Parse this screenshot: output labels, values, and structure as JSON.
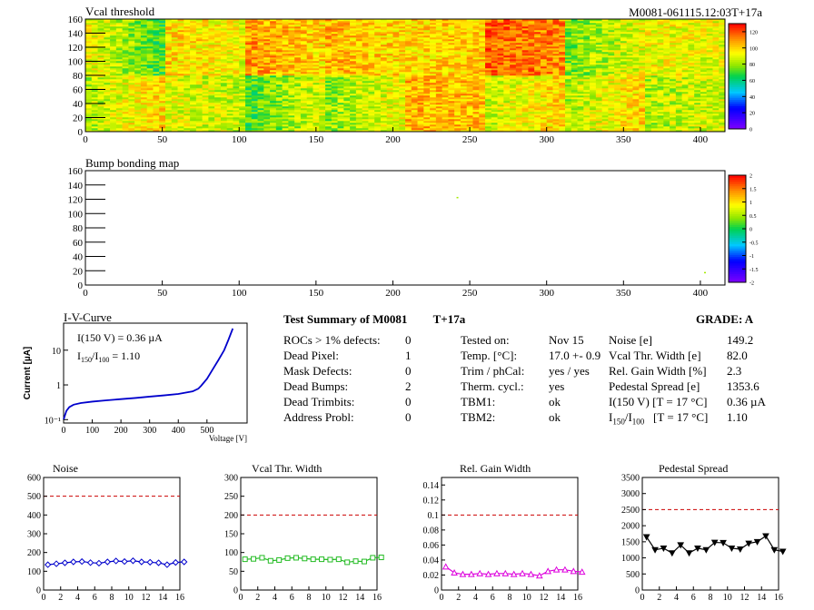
{
  "top_label": "M0081-061115.12:03T+17a",
  "chart_data": [
    {
      "type": "heatmap",
      "title": "Vcal threshold",
      "xlim": [
        0,
        416
      ],
      "ylim": [
        0,
        160
      ],
      "x_ticks": [
        0,
        50,
        100,
        150,
        200,
        250,
        300,
        350,
        400
      ],
      "y_ticks": [
        0,
        20,
        40,
        60,
        80,
        100,
        120,
        140,
        160
      ],
      "color_scale": {
        "range": [
          0,
          130
        ],
        "ticks": [
          0,
          20,
          40,
          60,
          80,
          100,
          120
        ]
      },
      "roc_grid": {
        "cols": 8,
        "rows": 2,
        "roc_width": 52,
        "roc_height": 80
      },
      "roc_level": [
        [
          92,
          88,
          80,
          86,
          104,
          93,
          92,
          86
        ],
        [
          82,
          96,
          104,
          102,
          100,
          114,
          84,
          92
        ]
      ],
      "roc_gradient": [
        [
          0.6,
          -0.2,
          0.7,
          0.5,
          -0.1,
          0.5,
          0.6,
          0.2
        ],
        [
          -0.8,
          -0.3,
          -0.4,
          -0.2,
          0.1,
          -0.2,
          0.5,
          -0.1
        ]
      ]
    },
    {
      "type": "heatmap",
      "title": "Bump bonding map",
      "xlim": [
        0,
        416
      ],
      "ylim": [
        0,
        160
      ],
      "x_ticks": [
        0,
        50,
        100,
        150,
        200,
        250,
        300,
        350,
        400
      ],
      "y_ticks": [
        0,
        20,
        40,
        60,
        80,
        100,
        120,
        140,
        160
      ],
      "color_scale": {
        "range": [
          -2,
          2
        ],
        "ticks": [
          -2,
          -1.5,
          -1,
          -0.5,
          0,
          0.5,
          1,
          1.5,
          2
        ]
      },
      "points": [
        {
          "x": 242,
          "y": 122,
          "value": 0.5
        },
        {
          "x": 403,
          "y": 17,
          "value": 0.5
        }
      ]
    },
    {
      "type": "line",
      "title": "I-V-Curve",
      "xlabel": "Voltage [V]",
      "ylabel": "Current [µA]",
      "log_y": true,
      "xlim": [
        0,
        640
      ],
      "ylim": [
        0.08,
        60
      ],
      "x_ticks": [
        0,
        100,
        200,
        300,
        400,
        500
      ],
      "y_ticks": [
        0.1,
        1,
        10
      ],
      "y_tick_labels": [
        "10⁻¹",
        "1",
        "10"
      ],
      "annotation_1": "I(150 V) = 0.36 µA",
      "annotation_2_parts": [
        "I",
        "150",
        "/I",
        "100",
        " =  1.10"
      ],
      "series": [
        {
          "color": "#0000cc",
          "x": [
            0,
            3,
            10,
            20,
            35,
            60,
            100,
            150,
            200,
            250,
            300,
            350,
            400,
            450,
            470,
            480,
            500,
            520,
            540,
            560,
            575,
            590
          ],
          "y": [
            0.1,
            0.12,
            0.18,
            0.23,
            0.27,
            0.3,
            0.33,
            0.36,
            0.39,
            0.42,
            0.46,
            0.5,
            0.55,
            0.65,
            0.78,
            0.95,
            1.5,
            2.8,
            5.2,
            10,
            20,
            42
          ]
        }
      ]
    },
    {
      "type": "line",
      "title": "Noise",
      "xlim": [
        0,
        16
      ],
      "ylim": [
        0,
        600
      ],
      "x_ticks": [
        0,
        2,
        4,
        6,
        8,
        10,
        12,
        14,
        16
      ],
      "y_ticks": [
        0,
        100,
        200,
        300,
        400,
        500,
        600
      ],
      "y_tick_labels": [
        "0",
        "100",
        "200",
        "300",
        "400",
        "500",
        "600"
      ],
      "limit_line": 500,
      "color": "#0000cc",
      "marker": "diamond",
      "values": [
        135,
        140,
        145,
        150,
        152,
        146,
        143,
        150,
        155,
        152,
        156,
        150,
        148,
        145,
        135,
        147,
        150
      ]
    },
    {
      "type": "line",
      "title": "Vcal Thr. Width",
      "xlim": [
        0,
        16
      ],
      "ylim": [
        0,
        300
      ],
      "x_ticks": [
        0,
        2,
        4,
        6,
        8,
        10,
        12,
        14,
        16
      ],
      "y_ticks": [
        0,
        50,
        100,
        150,
        200,
        250,
        300
      ],
      "y_tick_labels": [
        "0",
        "50",
        "100",
        "150",
        "200",
        "250",
        "300"
      ],
      "limit_line": 200,
      "color": "#22bb22",
      "marker": "square",
      "values": [
        82,
        83,
        86,
        78,
        80,
        85,
        86,
        84,
        82,
        82,
        81,
        82,
        74,
        77,
        76,
        86,
        87
      ]
    },
    {
      "type": "line",
      "title": "Rel. Gain Width",
      "xlim": [
        0,
        16
      ],
      "ylim": [
        0,
        0.15
      ],
      "x_ticks": [
        0,
        2,
        4,
        6,
        8,
        10,
        12,
        14,
        16
      ],
      "y_ticks": [
        0,
        0.02,
        0.04,
        0.06,
        0.08,
        0.1,
        0.12,
        0.14
      ],
      "y_tick_labels": [
        "0",
        "0.02",
        "0.04",
        "0.06",
        "0.08",
        "0.1",
        "0.12",
        "0.14"
      ],
      "limit_line": 0.1,
      "color": "#dd00dd",
      "marker": "triangle",
      "values": [
        0.031,
        0.023,
        0.021,
        0.021,
        0.022,
        0.021,
        0.022,
        0.022,
        0.021,
        0.022,
        0.021,
        0.019,
        0.025,
        0.027,
        0.027,
        0.025,
        0.024
      ]
    },
    {
      "type": "line",
      "title": "Pedestal Spread",
      "xlim": [
        0,
        16
      ],
      "ylim": [
        0,
        3500
      ],
      "x_ticks": [
        0,
        2,
        4,
        6,
        8,
        10,
        12,
        14,
        16
      ],
      "y_ticks": [
        0,
        500,
        1000,
        1500,
        2000,
        2500,
        3000,
        3500
      ],
      "y_tick_labels": [
        "0",
        "500",
        "1000",
        "1500",
        "2000",
        "2500",
        "3000",
        "3500"
      ],
      "limit_line": 2500,
      "color": "#000000",
      "marker": "triangle-down",
      "values": [
        1650,
        1250,
        1300,
        1150,
        1400,
        1150,
        1300,
        1250,
        1480,
        1470,
        1300,
        1270,
        1450,
        1500,
        1680,
        1250,
        1200
      ]
    }
  ],
  "summary": {
    "title": "Test Summary of M0081",
    "tag": "T+17a",
    "grade": "GRADE:  A",
    "defects": [
      {
        "label": "ROCs > 1% defects:",
        "value": "0"
      },
      {
        "label": "Dead Pixel:",
        "value": "1"
      },
      {
        "label": "Mask Defects:",
        "value": "0"
      },
      {
        "label": "Dead Bumps:",
        "value": "2"
      },
      {
        "label": "Dead Trimbits:",
        "value": "0"
      },
      {
        "label": "Address Probl:",
        "value": "0"
      }
    ],
    "conditions": [
      {
        "label": "Tested on:",
        "value": "Nov 15"
      },
      {
        "label": "Temp. [°C]:",
        "value": "17.0 +- 0.9"
      },
      {
        "label": "Trim / phCal:",
        "value": "yes / yes"
      },
      {
        "label": "Therm. cycl.:",
        "value": "yes"
      },
      {
        "label": "TBM1:",
        "value": "ok"
      },
      {
        "label": "TBM2:",
        "value": "ok"
      }
    ],
    "results": [
      {
        "label": "Noise [e]",
        "value": "149.2"
      },
      {
        "label": "Vcal Thr. Width [e]",
        "value": "82.0"
      },
      {
        "label": "Rel. Gain Width [%]",
        "value": "2.3"
      },
      {
        "label": "Pedestal Spread [e]",
        "value": "1353.6"
      },
      {
        "label": "I(150 V) [T = 17 °C]",
        "value": "0.36 µA"
      }
    ],
    "last_result": {
      "parts": [
        "I",
        "150",
        "/I",
        "100",
        "   [T = 17 °C]"
      ],
      "value": "1.10"
    }
  }
}
